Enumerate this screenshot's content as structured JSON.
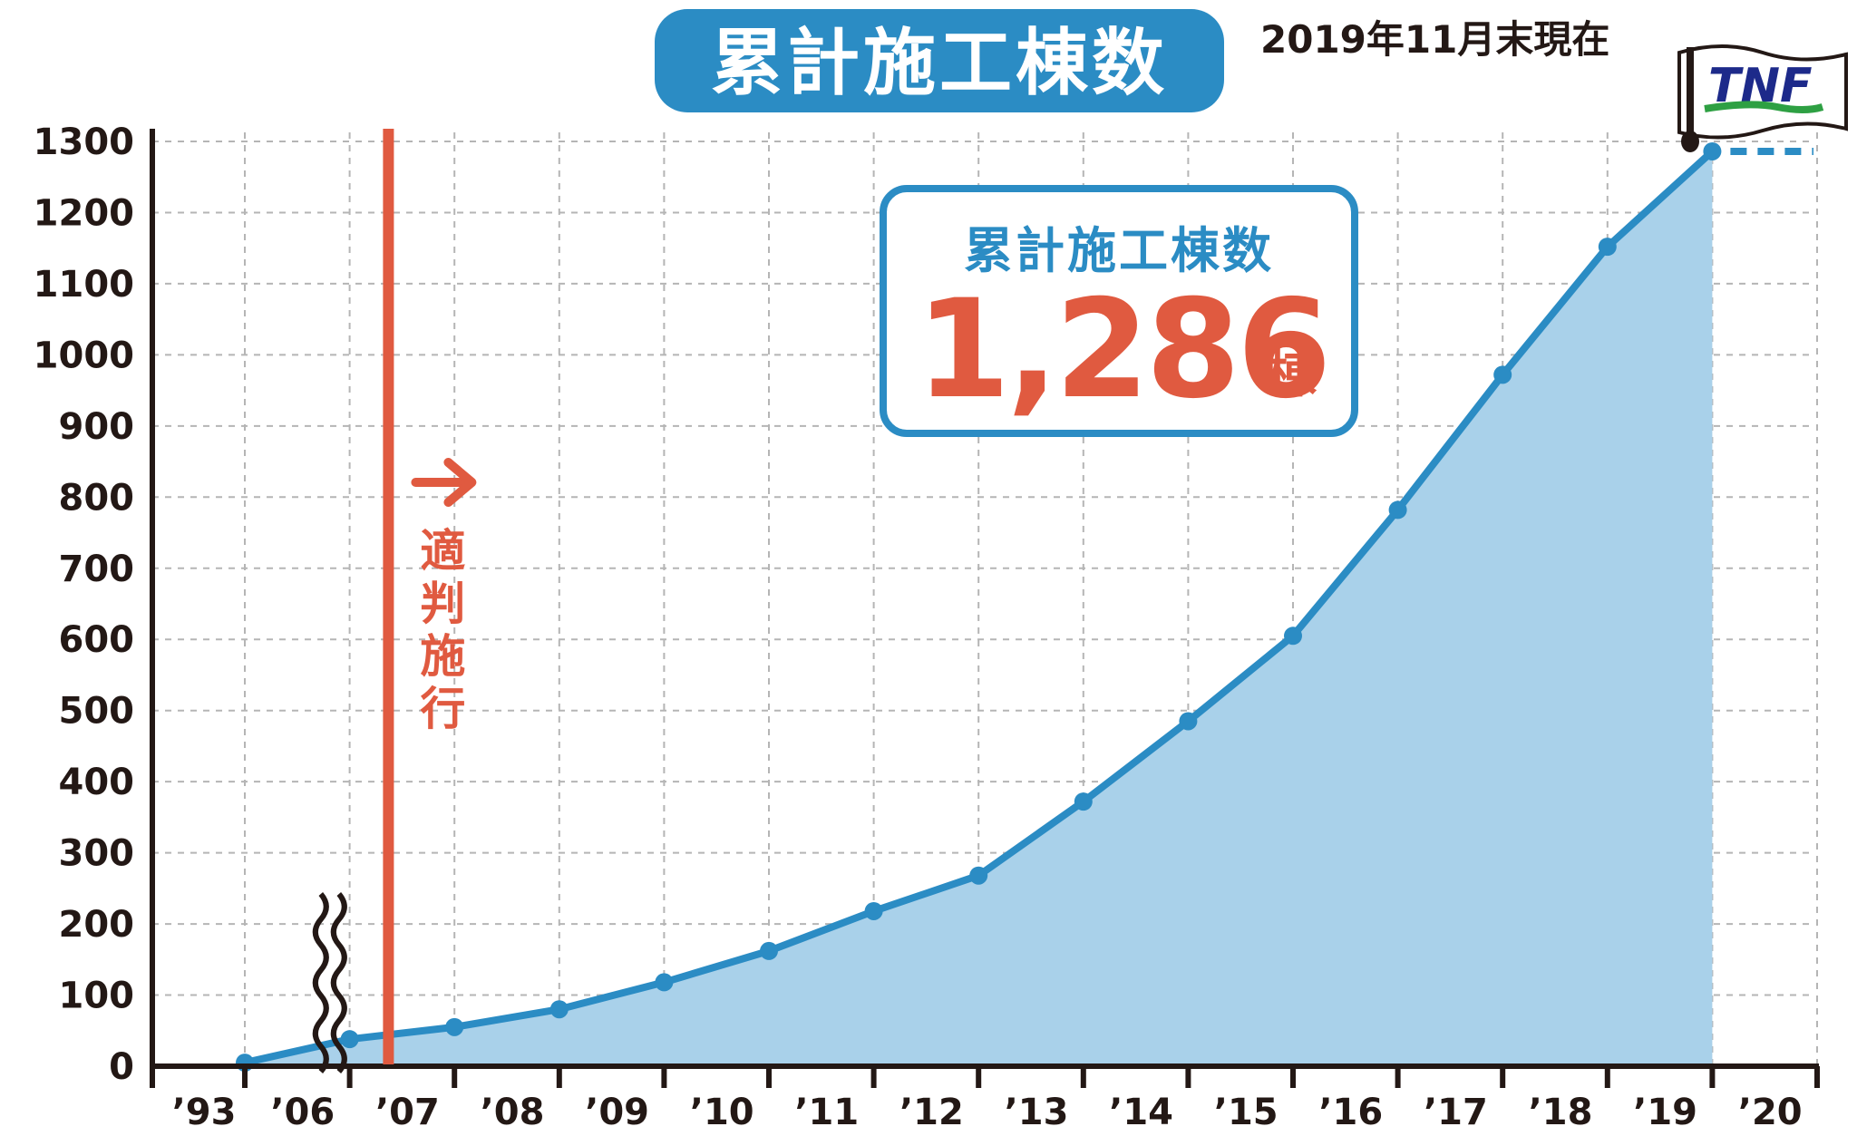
{
  "chart_data": {
    "type": "area",
    "title": "累計施工棟数",
    "as_of": "2019年11月末現在",
    "categories": [
      "’93",
      "’06",
      "’07",
      "’08",
      "’09",
      "’10",
      "’11",
      "’12",
      "’13",
      "’14",
      "’15",
      "’16",
      "’17",
      "’18",
      "’19",
      "’20"
    ],
    "series": [
      {
        "x": [
          "’93",
          "’06",
          "’07",
          "’08",
          "’09",
          "’10",
          "’11",
          "’12",
          "’13",
          "’14",
          "’15",
          "’16",
          "’17",
          "’18",
          "’19"
        ],
        "values": [
          5,
          38,
          55,
          80,
          118,
          162,
          218,
          268,
          372,
          485,
          605,
          782,
          972,
          1152,
          1286
        ]
      }
    ],
    "y_ticks": [
      "0",
      "100",
      "200",
      "300",
      "400",
      "500",
      "600",
      "700",
      "800",
      "900",
      "1000",
      "1100",
      "1200",
      "1300"
    ],
    "ylim": [
      0,
      1300
    ],
    "grid": true,
    "axis_break_between": [
      "’93",
      "’06"
    ],
    "annotation": {
      "at_category": "’07",
      "label": "適判施行",
      "color": "#e05a40"
    },
    "highlight_box": {
      "label": "累計施工棟数",
      "value": "1,286",
      "unit": "棟"
    },
    "logo_text": "TNF",
    "colors": {
      "line": "#2b8cc4",
      "area": "#a9d1ea",
      "accent": "#e05a40",
      "axis": "#231815",
      "title_bg": "#2b8cc4",
      "logo_text": "#1d2a8a",
      "logo_stripe": "#2ea043"
    }
  }
}
